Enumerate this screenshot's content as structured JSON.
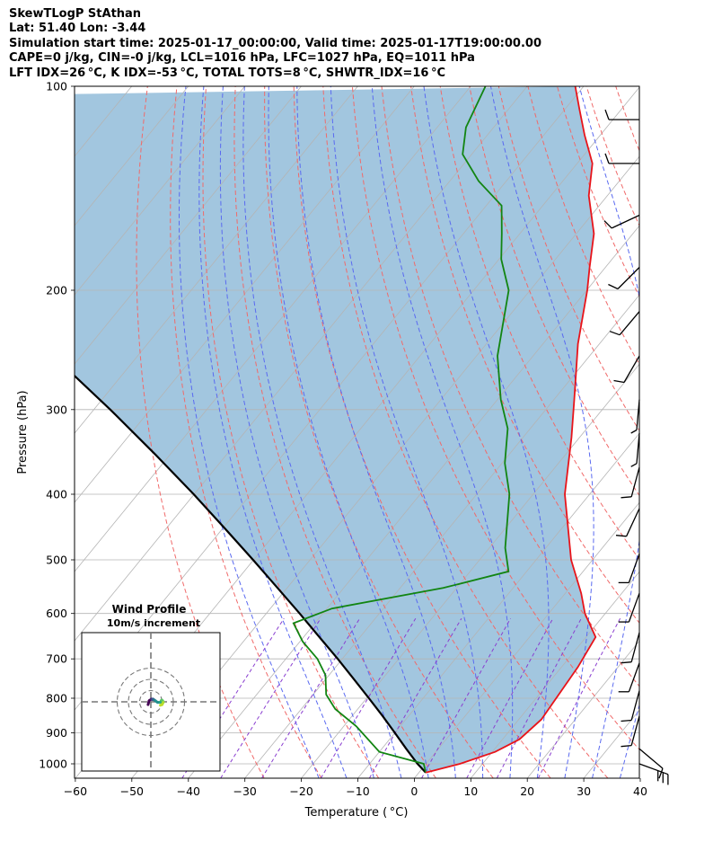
{
  "header": {
    "line1": "SkewTLogP StAthan",
    "line2": "Lat: 51.40   Lon: -3.44",
    "line3": "Simulation start time: 2025-01-17_00:00:00, Valid time: 2025-01-17T19:00:00.00",
    "line4": "CAPE=0 j/kg, CIN=-0 j/kg, LCL=1016 hPa, LFC=1027 hPa, EQ=1011 hPa",
    "line5": "LFT IDX=26 °C, K IDX=-53 °C, TOTAL TOTS=8 °C, SHWTR_IDX=16 °C"
  },
  "colors": {
    "temperature": "#e8141a",
    "dewpoint": "#128512",
    "parcel": "#000000",
    "shading": "#a2c6df",
    "dry_adiabats": "#f06a6a",
    "moist_adiabats": "#5a6af0",
    "isotherms": "#b4b4b4",
    "mixing_ratio": "#8a3fd0"
  },
  "chart_data": [
    {
      "type": "line",
      "subtype": "skew-T log-P diagram",
      "xlabel": "Temperature ( °C)",
      "ylabel": "Pressure (hPa)",
      "xlim": [
        -60,
        40
      ],
      "ylim": [
        1050,
        100
      ],
      "yscale": "log",
      "x_ticks": [
        "−60",
        "−50",
        "−40",
        "−30",
        "−20",
        "−10",
        "0",
        "10",
        "20",
        "30",
        "40"
      ],
      "y_ticks": [
        "100",
        "200",
        "300",
        "400",
        "500",
        "600",
        "700",
        "800",
        "900",
        "1000"
      ],
      "grid": true,
      "series": [
        {
          "role": "temperature",
          "points": [
            [
              1.2,
              1030
            ],
            [
              6.0,
              1000
            ],
            [
              10.5,
              960
            ],
            [
              13.0,
              920
            ],
            [
              14.0,
              860
            ],
            [
              12.9,
              720
            ],
            [
              11.7,
              650
            ],
            [
              6.4,
              600
            ],
            [
              2.8,
              560
            ],
            [
              -3.8,
              500
            ],
            [
              -14.4,
              400
            ],
            [
              -21.4,
              330
            ],
            [
              -26.4,
              290
            ],
            [
              -33.8,
              240
            ],
            [
              -39.9,
              200
            ],
            [
              -42.8,
              185
            ],
            [
              -46.9,
              165
            ],
            [
              -53.3,
              145
            ],
            [
              -57.3,
              130
            ],
            [
              -62.8,
              118
            ],
            [
              -67.5,
              108
            ],
            [
              -71.5,
              100
            ]
          ]
        },
        {
          "role": "dewpoint",
          "points": [
            [
              1.2,
              1030
            ],
            [
              -0.4,
              1000
            ],
            [
              -10.0,
              960
            ],
            [
              -17.8,
              880
            ],
            [
              -24.0,
              830
            ],
            [
              -27.7,
              790
            ],
            [
              -30.6,
              740
            ],
            [
              -34.4,
              700
            ],
            [
              -39.5,
              660
            ],
            [
              -43.8,
              620
            ],
            [
              -39.1,
              590
            ],
            [
              -22.4,
              550
            ],
            [
              -13.2,
              520
            ],
            [
              -17.2,
              480
            ],
            [
              -24.2,
              400
            ],
            [
              -29.5,
              360
            ],
            [
              -34.0,
              320
            ],
            [
              -39.4,
              290
            ],
            [
              -46.3,
              250
            ],
            [
              -53.8,
              200
            ],
            [
              -59.6,
              180
            ],
            [
              -63.2,
              165
            ],
            [
              -67.3,
              150
            ],
            [
              -74.9,
              138
            ],
            [
              -81.6,
              126
            ],
            [
              -84.9,
              115
            ],
            [
              -87.4,
              100
            ]
          ]
        },
        {
          "role": "parcel",
          "points": [
            [
              1.2,
              1030
            ],
            [
              -1.5,
              1000
            ],
            [
              -5.7,
              950
            ],
            [
              -10.0,
              900
            ],
            [
              -14.6,
              850
            ],
            [
              -19.6,
              800
            ],
            [
              -25.0,
              750
            ],
            [
              -30.8,
              700
            ],
            [
              -37.2,
              650
            ],
            [
              -44.1,
              600
            ],
            [
              -51.7,
              550
            ],
            [
              -60.1,
              500
            ],
            [
              -69.5,
              450
            ],
            [
              -80.1,
              400
            ],
            [
              -92.5,
              350
            ],
            [
              -107.1,
              300
            ],
            [
              -124.9,
              250
            ],
            [
              -147.5,
              200
            ],
            [
              -163.0,
              175
            ],
            [
              -182.0,
              150
            ],
            [
              -206.2,
              125
            ],
            [
              -233.0,
              105
            ]
          ]
        }
      ],
      "wind_barbs": [
        {
          "pressure": 1000,
          "direction": 110,
          "speed_kt": 30
        },
        {
          "pressure": 950,
          "direction": 130,
          "speed_kt": 10
        },
        {
          "pressure": 850,
          "direction": 195,
          "speed_kt": 10
        },
        {
          "pressure": 780,
          "direction": 195,
          "speed_kt": 10
        },
        {
          "pressure": 710,
          "direction": 200,
          "speed_kt": 10
        },
        {
          "pressure": 640,
          "direction": 195,
          "speed_kt": 10
        },
        {
          "pressure": 560,
          "direction": 200,
          "speed_kt": 10
        },
        {
          "pressure": 490,
          "direction": 200,
          "speed_kt": 10
        },
        {
          "pressure": 420,
          "direction": 205,
          "speed_kt": 10
        },
        {
          "pressure": 365,
          "direction": 195,
          "speed_kt": 10
        },
        {
          "pressure": 325,
          "direction": 185,
          "speed_kt": 5
        },
        {
          "pressure": 290,
          "direction": 185,
          "speed_kt": 5
        },
        {
          "pressure": 250,
          "direction": 210,
          "speed_kt": 10
        },
        {
          "pressure": 215,
          "direction": 220,
          "speed_kt": 10
        },
        {
          "pressure": 185,
          "direction": 225,
          "speed_kt": 10
        },
        {
          "pressure": 155,
          "direction": 245,
          "speed_kt": 10
        },
        {
          "pressure": 130,
          "direction": 270,
          "speed_kt": 10
        },
        {
          "pressure": 112,
          "direction": 270,
          "speed_kt": 10
        }
      ]
    },
    {
      "type": "scatter",
      "subtype": "hodograph",
      "title": "Wind Profile",
      "subtitle": "10m/s increment",
      "rings_ms": [
        10,
        20,
        30
      ],
      "u_ms": [
        -2.5,
        -1.5,
        0.5,
        1.5,
        1.8,
        2.5,
        4.0,
        6.0,
        8.5,
        9.5,
        10.5,
        11.0,
        10.0,
        8.5
      ],
      "v_ms": [
        -2.5,
        1.0,
        2.5,
        2.0,
        2.5,
        2.0,
        1.0,
        -0.5,
        -0.5,
        1.5,
        1.0,
        -0.5,
        -2.5,
        -3.0
      ]
    }
  ]
}
